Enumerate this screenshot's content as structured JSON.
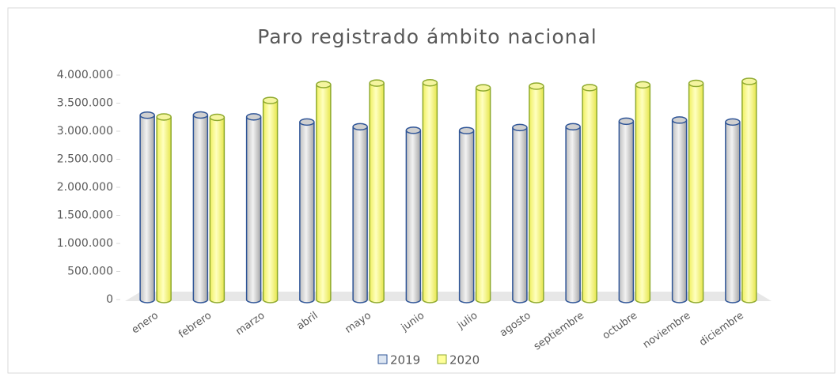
{
  "chart_data": {
    "type": "bar",
    "title": "Paro registrado ámbito nacional",
    "categories": [
      "enero",
      "febrero",
      "marzo",
      "abril",
      "mayo",
      "junio",
      "julio",
      "agosto",
      "septiembre",
      "octubre",
      "noviembre",
      "diciembre"
    ],
    "series": [
      {
        "name": "2019",
        "color": "#2f5597",
        "values": [
          3285761,
          3289040,
          3255084,
          3163566,
          3079491,
          3015686,
          3011433,
          3065804,
          3079711,
          3177659,
          3198184,
          3163605
        ]
      },
      {
        "name": "2020",
        "color": "#8faa2e",
        "values": [
          3253853,
          3246047,
          3548312,
          3831203,
          3857776,
          3862883,
          3773034,
          3802814,
          3776485,
          3826043,
          3851312,
          3888137
        ]
      }
    ],
    "ylim": [
      0,
      4000000
    ],
    "yticks": [
      0,
      {
        "value": 500000,
        "label": "500.000"
      },
      {
        "value": 1000000,
        "label": "1.000.000"
      },
      {
        "value": 1500000,
        "label": "1.500.000"
      },
      {
        "value": 2000000,
        "label": "2.000.000"
      },
      {
        "value": 2500000,
        "label": "2.500.000"
      },
      {
        "value": 3000000,
        "label": "3.000.000"
      },
      {
        "value": 3500000,
        "label": "3.500.000"
      },
      {
        "value": 4000000,
        "label": "4.000.000"
      }
    ],
    "grid": false
  }
}
